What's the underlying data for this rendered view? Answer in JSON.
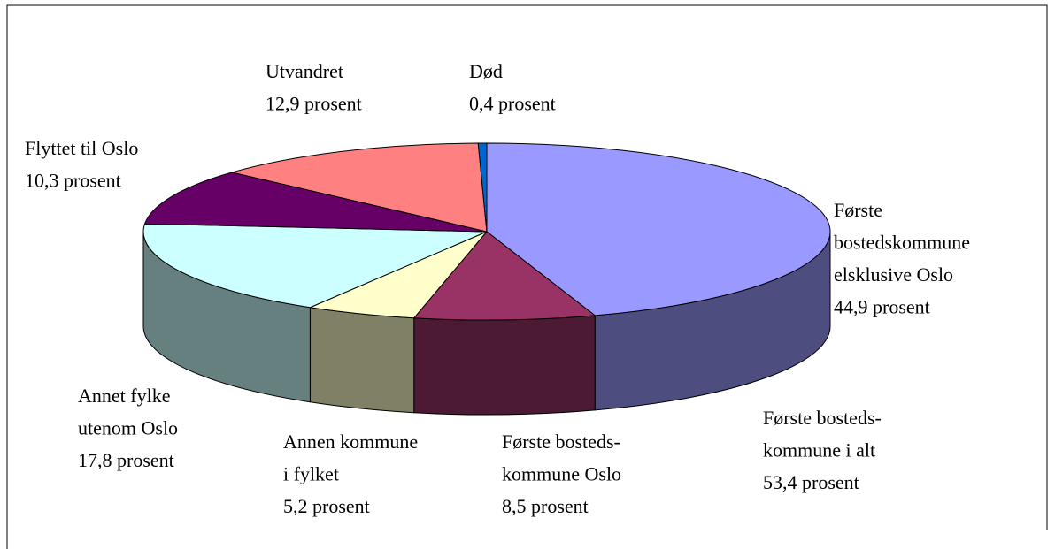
{
  "chart_data": {
    "type": "pie3d",
    "categories": [
      "Første\nbostedskommune\nelsklusive Oslo",
      "Første bosteds-\nkommune Oslo",
      "Annen kommune\ni fylket",
      "Annet fylke\nutenom Oslo",
      "Flyttet til Oslo",
      "Utvandret",
      "Død"
    ],
    "values": [
      44.9,
      8.5,
      5.2,
      17.8,
      10.3,
      12.9,
      0.4
    ],
    "value_labels": [
      "44,9 prosent",
      "8,5 prosent",
      "5,2 prosent",
      "17,8 prosent",
      "10,3 prosent",
      "12,9 prosent",
      "0,4 prosent"
    ],
    "colors": [
      "#9999ff",
      "#993366",
      "#ffffcc",
      "#ccffff",
      "#660066",
      "#ff8080",
      "#0066cc"
    ],
    "annotation": {
      "text": "Første bosteds-\nkommune i alt",
      "value": 53.4,
      "value_label": "53,4 prosent"
    }
  }
}
